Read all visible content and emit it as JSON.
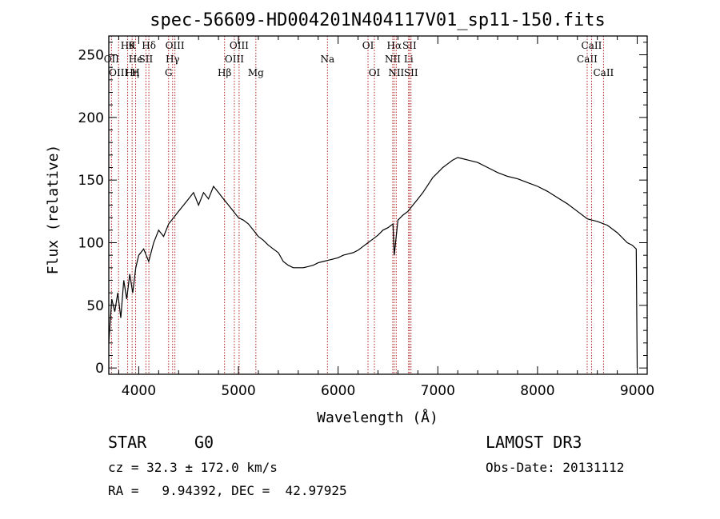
{
  "chart_data": {
    "type": "line",
    "title": "spec-56609-HD004201N404117V01_sp11-150.fits",
    "xlabel": "Wavelength (Å)",
    "ylabel": "Flux (relative)",
    "xlim": [
      3700,
      9100
    ],
    "ylim": [
      -5,
      265
    ],
    "xticks": [
      4000,
      5000,
      6000,
      7000,
      8000,
      9000
    ],
    "yticks": [
      0,
      50,
      100,
      150,
      200,
      250
    ],
    "series": [
      {
        "name": "flux",
        "x": [
          3700,
          3730,
          3760,
          3790,
          3820,
          3850,
          3880,
          3910,
          3940,
          3970,
          4000,
          4050,
          4100,
          4150,
          4200,
          4250,
          4300,
          4350,
          4400,
          4450,
          4500,
          4550,
          4600,
          4650,
          4700,
          4750,
          4800,
          4850,
          4900,
          4950,
          5000,
          5050,
          5100,
          5150,
          5200,
          5250,
          5300,
          5350,
          5400,
          5450,
          5500,
          5550,
          5600,
          5650,
          5700,
          5750,
          5800,
          5850,
          5900,
          5950,
          6000,
          6050,
          6100,
          6150,
          6200,
          6250,
          6300,
          6350,
          6400,
          6450,
          6500,
          6550,
          6563,
          6600,
          6650,
          6700,
          6750,
          6800,
          6850,
          6900,
          6950,
          7000,
          7050,
          7100,
          7150,
          7200,
          7250,
          7300,
          7400,
          7500,
          7600,
          7700,
          7800,
          7900,
          8000,
          8100,
          8200,
          8300,
          8400,
          8500,
          8600,
          8700,
          8800,
          8900,
          8950,
          8990,
          9000
        ],
        "values": [
          20,
          55,
          45,
          60,
          40,
          70,
          55,
          75,
          60,
          80,
          90,
          95,
          85,
          100,
          110,
          105,
          115,
          120,
          125,
          130,
          135,
          140,
          130,
          140,
          135,
          145,
          140,
          135,
          130,
          125,
          120,
          118,
          115,
          110,
          105,
          102,
          98,
          95,
          92,
          85,
          82,
          80,
          80,
          80,
          81,
          82,
          84,
          85,
          86,
          87,
          88,
          90,
          91,
          92,
          94,
          97,
          100,
          103,
          106,
          110,
          112,
          115,
          90,
          118,
          122,
          125,
          130,
          135,
          140,
          146,
          152,
          156,
          160,
          163,
          166,
          168,
          167,
          166,
          164,
          160,
          156,
          153,
          151,
          148,
          145,
          141,
          136,
          131,
          125,
          119,
          117,
          114,
          108,
          100,
          98,
          95,
          0
        ]
      }
    ],
    "lines": [
      {
        "wl": 3727,
        "labels": [
          "OII"
        ],
        "rows": [
          2
        ]
      },
      {
        "wl": 3798,
        "labels": [
          "OIII"
        ],
        "rows": [
          3
        ]
      },
      {
        "wl": 3889,
        "labels": [
          "Hθ"
        ],
        "rows": [
          1
        ]
      },
      {
        "wl": 3934,
        "labels": [
          "K",
          "Hη"
        ],
        "rows": [
          1,
          3
        ]
      },
      {
        "wl": 3969,
        "labels": [
          "He",
          "H"
        ],
        "rows": [
          2,
          3
        ]
      },
      {
        "wl": 4072,
        "labels": [
          "SII"
        ],
        "rows": [
          2
        ]
      },
      {
        "wl": 4102,
        "labels": [
          "Hδ"
        ],
        "rows": [
          1
        ]
      },
      {
        "wl": 4300,
        "labels": [
          "G"
        ],
        "rows": [
          3
        ]
      },
      {
        "wl": 4340,
        "labels": [
          "Hγ"
        ],
        "rows": [
          2
        ]
      },
      {
        "wl": 4363,
        "labels": [
          "OIII"
        ],
        "rows": [
          1
        ]
      },
      {
        "wl": 4861,
        "labels": [
          "Hβ"
        ],
        "rows": [
          3
        ]
      },
      {
        "wl": 4959,
        "labels": [
          "OIII"
        ],
        "rows": [
          2
        ]
      },
      {
        "wl": 5007,
        "labels": [
          "OIII"
        ],
        "rows": [
          1
        ]
      },
      {
        "wl": 5175,
        "labels": [
          "Mg"
        ],
        "rows": [
          3
        ]
      },
      {
        "wl": 5893,
        "labels": [
          "Na"
        ],
        "rows": [
          2
        ]
      },
      {
        "wl": 6300,
        "labels": [
          "OI"
        ],
        "rows": [
          1
        ]
      },
      {
        "wl": 6364,
        "labels": [
          "OI"
        ],
        "rows": [
          3
        ]
      },
      {
        "wl": 6548,
        "labels": [
          "NII"
        ],
        "rows": [
          2
        ]
      },
      {
        "wl": 6563,
        "labels": [
          "Hα"
        ],
        "rows": [
          1
        ]
      },
      {
        "wl": 6583,
        "labels": [
          "NII"
        ],
        "rows": [
          3
        ]
      },
      {
        "wl": 6707,
        "labels": [
          "Li"
        ],
        "rows": [
          2
        ]
      },
      {
        "wl": 6716,
        "labels": [
          "SII"
        ],
        "rows": [
          1
        ]
      },
      {
        "wl": 6731,
        "labels": [
          "SII"
        ],
        "rows": [
          3
        ]
      },
      {
        "wl": 8498,
        "labels": [
          "CaII"
        ],
        "rows": [
          2
        ]
      },
      {
        "wl": 8542,
        "labels": [
          "CaII"
        ],
        "rows": [
          1
        ]
      },
      {
        "wl": 8662,
        "labels": [
          "CaII"
        ],
        "rows": [
          3
        ]
      }
    ]
  },
  "info": {
    "object_class": "STAR",
    "subclass": "G0",
    "survey": "LAMOST DR3",
    "cz_line": "cz = 32.3 ± 172.0 km/s",
    "obs_date_line": "Obs-Date: 20131112",
    "coord_line": "RA =   9.94392, DEC =  42.97925"
  }
}
